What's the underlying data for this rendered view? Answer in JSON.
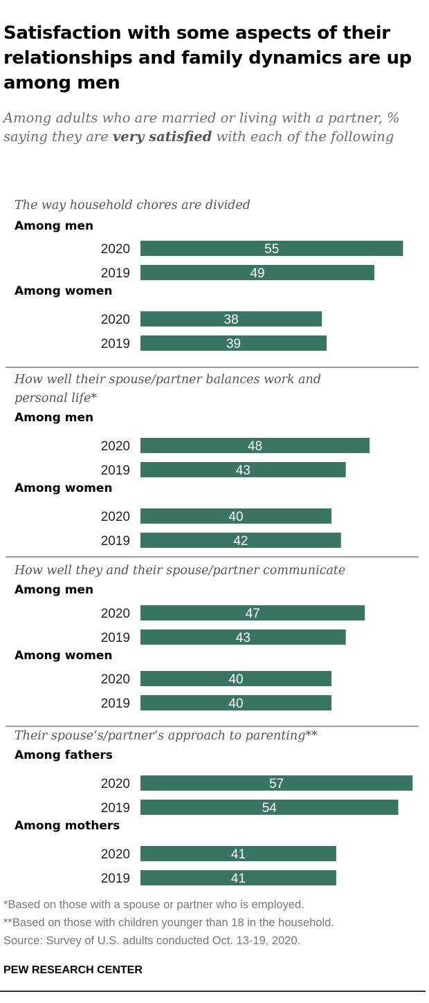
{
  "title": "Satisfaction with some aspects of their relationships and family dynamics are up among men",
  "subtitle": {
    "pre": "Among adults who are married or living with a partner, % saying they are ",
    "bold": "very satisfied",
    "post": " with each of the following"
  },
  "colors": {
    "bar": "#3a7563",
    "bar_label": "#ffffff",
    "divider": "#9a9a9a"
  },
  "chart_data": {
    "type": "bar",
    "orientation": "horizontal",
    "sections": [
      {
        "title_lines": [
          "The way household chores are divided"
        ],
        "groups": [
          {
            "label": "Among men",
            "bars": [
              {
                "year": "2020",
                "value": 55
              },
              {
                "year": "2019",
                "value": 49
              }
            ]
          },
          {
            "label": "Among women",
            "bars": [
              {
                "year": "2020",
                "value": 38
              },
              {
                "year": "2019",
                "value": 39
              }
            ]
          }
        ]
      },
      {
        "title_lines": [
          "How well their spouse/partner balances work and",
          "personal life*"
        ],
        "groups": [
          {
            "label": "Among men",
            "bars": [
              {
                "year": "2020",
                "value": 48
              },
              {
                "year": "2019",
                "value": 43
              }
            ]
          },
          {
            "label": "Among women",
            "bars": [
              {
                "year": "2020",
                "value": 40
              },
              {
                "year": "2019",
                "value": 42
              }
            ]
          }
        ]
      },
      {
        "title_lines": [
          "How well they and their spouse/partner communicate"
        ],
        "groups": [
          {
            "label": "Among men",
            "bars": [
              {
                "year": "2020",
                "value": 47
              },
              {
                "year": "2019",
                "value": 43
              }
            ]
          },
          {
            "label": "Among women",
            "bars": [
              {
                "year": "2020",
                "value": 40
              },
              {
                "year": "2019",
                "value": 40
              }
            ]
          }
        ]
      },
      {
        "title_lines": [
          "Their spouse’s/partner’s approach to parenting**"
        ],
        "groups": [
          {
            "label": "Among fathers",
            "bars": [
              {
                "year": "2020",
                "value": 57
              },
              {
                "year": "2019",
                "value": 54
              }
            ]
          },
          {
            "label": "Among mothers",
            "bars": [
              {
                "year": "2020",
                "value": 41
              },
              {
                "year": "2019",
                "value": 41
              }
            ]
          }
        ]
      }
    ]
  },
  "footnotes": [
    "*Based on those with a spouse or partner who is employed.",
    "**Based on those with children younger than 18 in the household.",
    "Source: Survey of U.S. adults conducted Oct. 13-19, 2020."
  ],
  "brand": "PEW RESEARCH CENTER"
}
